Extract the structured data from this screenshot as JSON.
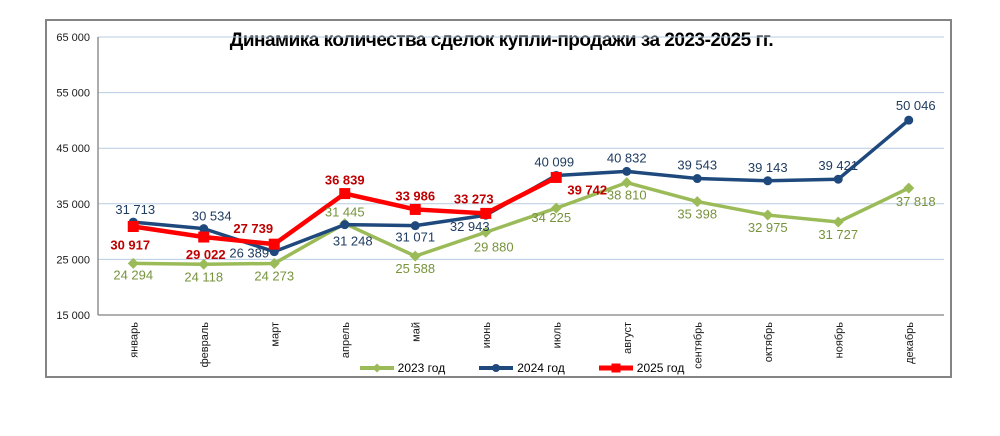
{
  "chart_data": {
    "type": "line",
    "title": "Динамика количества сделок купли-продажи за 2023-2025 гг.",
    "categories": [
      "январь",
      "февраль",
      "март",
      "апрель",
      "май",
      "июнь",
      "июль",
      "август",
      "сентябрь",
      "октябрь",
      "ноябрь",
      "декабрь"
    ],
    "series": [
      {
        "name": "2023 год",
        "color": "#9BBB59",
        "label_color": "#77933C",
        "marker": "diamond",
        "bold_labels": false,
        "values": [
          24294,
          24118,
          24273,
          31445,
          25588,
          29880,
          34225,
          38810,
          35398,
          32975,
          31727,
          37818
        ]
      },
      {
        "name": "2024 год",
        "color": "#1F497D",
        "label_color": "#1F3C61",
        "marker": "circle",
        "bold_labels": false,
        "values": [
          31713,
          30534,
          26389,
          31248,
          31071,
          32943,
          40099,
          40832,
          39543,
          39143,
          39421,
          50046
        ]
      },
      {
        "name": "2025 год",
        "color": "#FF0000",
        "label_color": "#C00000",
        "marker": "square",
        "bold_labels": true,
        "values": [
          30917,
          29022,
          27739,
          36839,
          33986,
          33273,
          39742
        ]
      }
    ],
    "ylim": [
      15000,
      65000
    ],
    "ytick_step": 10000,
    "ytick_values": [
      65000,
      55000,
      45000,
      35000,
      25000,
      15000
    ],
    "grid": true,
    "legend_position": "bottom",
    "xlabel": "",
    "ylabel": ""
  },
  "colors": {
    "grid": "#B7CCE2",
    "axis": "#808080",
    "frame_border": "#848484",
    "title": "#000000",
    "tick_label": "#1A1A1A"
  }
}
